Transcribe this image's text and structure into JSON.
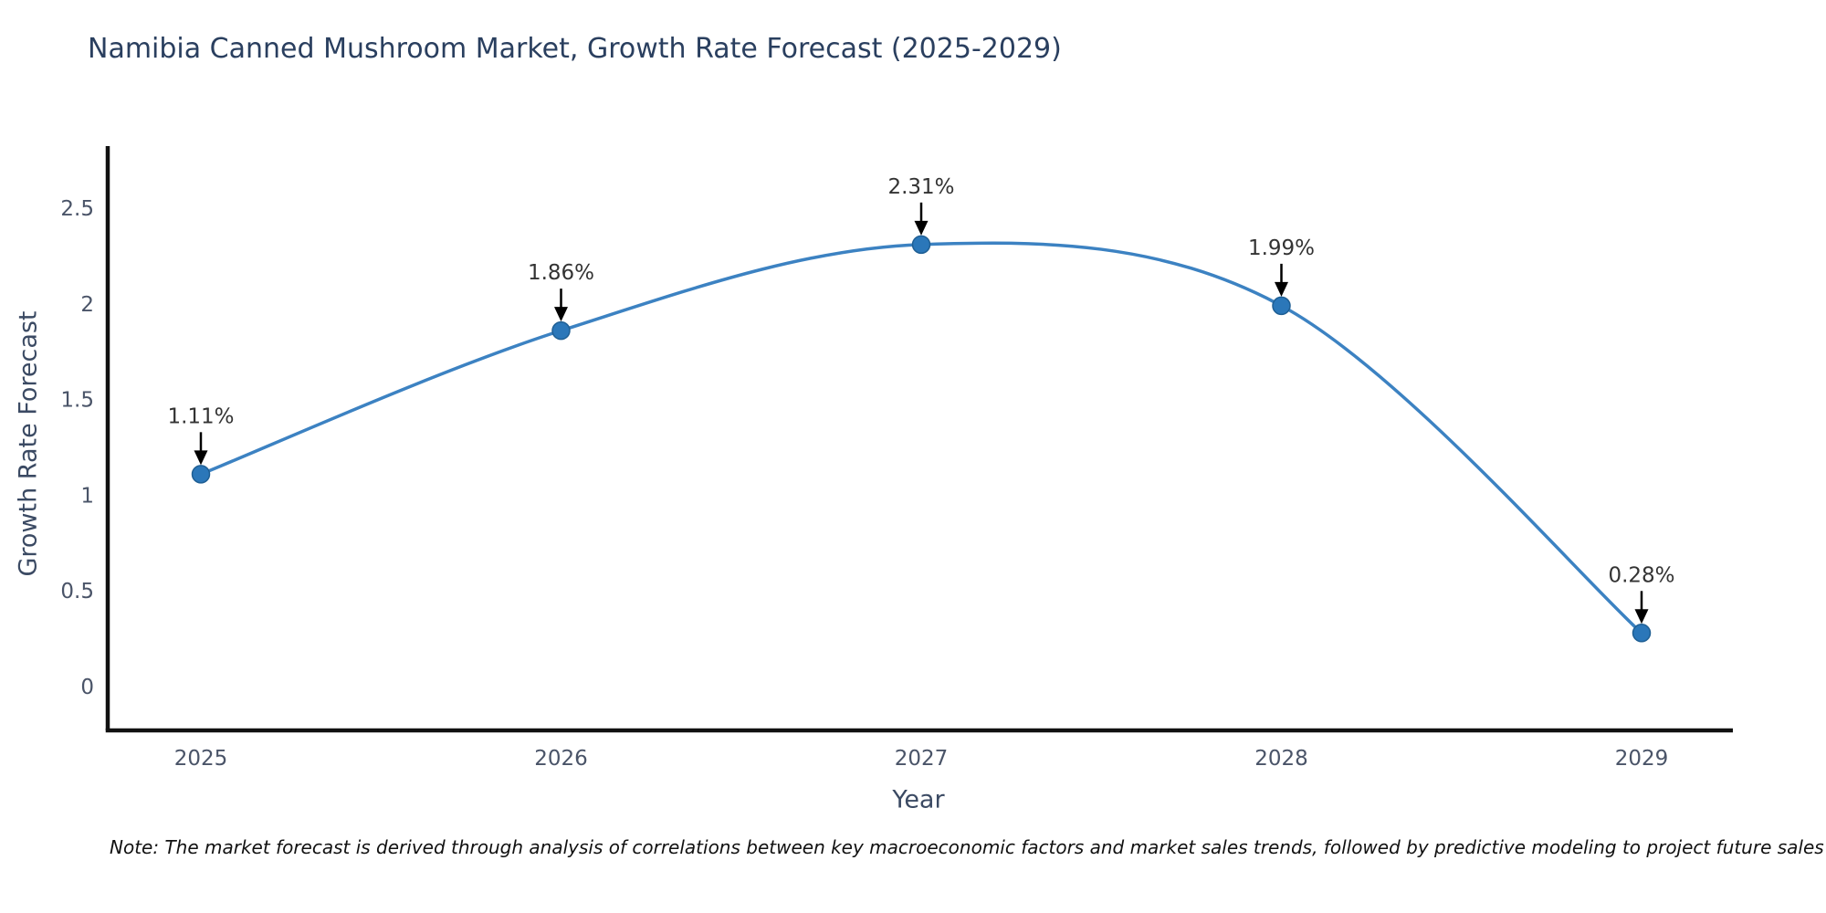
{
  "header": {
    "title": "Namibia Canned Mushroom Market, Growth Rate Forecast (2025-2029)"
  },
  "chart_data": {
    "type": "line",
    "title": "Namibia Canned Mushroom Market, Growth Rate Forecast (2025-2029)",
    "xlabel": "Year",
    "ylabel": "Growth Rate Forecast",
    "categories": [
      "2025",
      "2026",
      "2027",
      "2028",
      "2029"
    ],
    "series": [
      {
        "name": "Growth Rate Forecast",
        "values": [
          1.11,
          1.86,
          2.31,
          1.99,
          0.28
        ],
        "point_labels": [
          "1.11%",
          "1.86%",
          "2.31%",
          "1.99%",
          "0.28%"
        ]
      }
    ],
    "ylim": [
      0,
      2.5
    ],
    "ytick_step": 0.5,
    "yticks": [
      "0",
      "0.5",
      "1",
      "1.5",
      "2",
      "2.5"
    ],
    "grid": false,
    "legend_position": "none",
    "line_shape": "spline",
    "annotations_have_arrows": true,
    "colors": {
      "line": "#3c82c2",
      "marker": "#2b77b9",
      "marker_edge": "#1f5f94",
      "axis": "#111111",
      "tick_label": "#4a5468",
      "title_text": "#2a3f5f",
      "axis_title_text": "#3b4a63",
      "annotation_text": "#333333",
      "annotation_arrow": "#000000",
      "background": "#ffffff"
    }
  },
  "note": {
    "text": "Note: The market forecast is derived through analysis of correlations between key macroeconomic factors and market sales trends, followed by predictive modeling to project future sales"
  }
}
